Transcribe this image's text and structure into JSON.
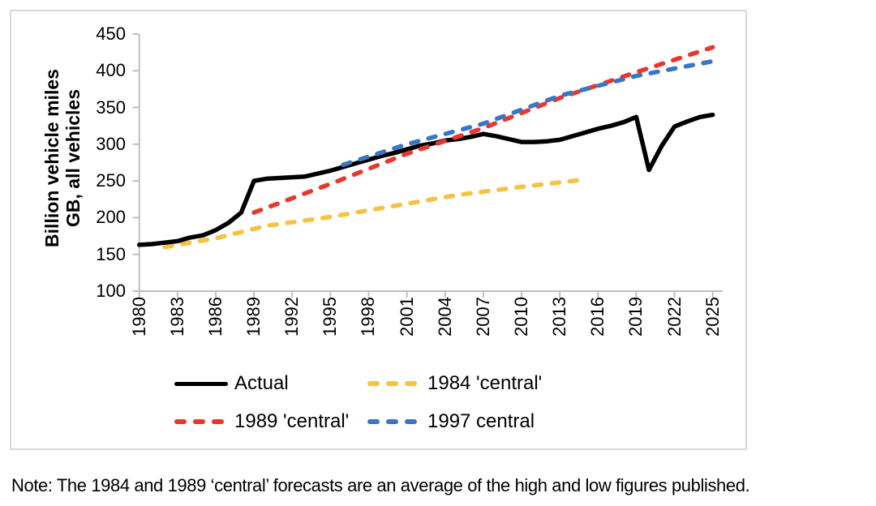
{
  "note": "Note: The 1984 and 1989 ‘central’ forecasts are an average of the high and low figures published.",
  "legend": {
    "items": [
      {
        "label": "Actual",
        "color": "#000000",
        "style": "solid"
      },
      {
        "label": "1984 'central'",
        "color": "#F5C242",
        "style": "dashed"
      },
      {
        "label": "1989 'central'",
        "color": "#E8382D",
        "style": "dashed"
      },
      {
        "label": "1997 central",
        "color": "#3A76C4",
        "style": "dashed"
      }
    ]
  },
  "colors": {
    "axis": "#BFBFBF",
    "panel_border": "#D9D9D9",
    "text": "#000000",
    "background": "#FFFFFF"
  },
  "chart_data": {
    "type": "line",
    "title": "",
    "xlabel": "",
    "ylabel": "Billion vehicle miles GB, all vehicles",
    "ylabel_line1": "Billion vehicle miles",
    "ylabel_line2": "GB, all vehicles",
    "xlim": [
      1980,
      2025
    ],
    "ylim": [
      100,
      450
    ],
    "x_ticks": [
      1980,
      1983,
      1986,
      1989,
      1992,
      1995,
      1998,
      2001,
      2004,
      2007,
      2010,
      2013,
      2016,
      2019,
      2022,
      2025
    ],
    "y_ticks": [
      100,
      150,
      200,
      250,
      300,
      350,
      400,
      450
    ],
    "grid": false,
    "legend_position": "bottom",
    "series": [
      {
        "name": "Actual",
        "color": "#000000",
        "dash": "solid",
        "points": [
          [
            1980,
            163
          ],
          [
            1981,
            164
          ],
          [
            1982,
            166
          ],
          [
            1983,
            168
          ],
          [
            1984,
            173
          ],
          [
            1985,
            176
          ],
          [
            1986,
            183
          ],
          [
            1987,
            193
          ],
          [
            1988,
            207
          ],
          [
            1989,
            250
          ],
          [
            1990,
            253
          ],
          [
            1991,
            254
          ],
          [
            1992,
            255
          ],
          [
            1993,
            256
          ],
          [
            1994,
            260
          ],
          [
            1995,
            264
          ],
          [
            1996,
            269
          ],
          [
            1997,
            274
          ],
          [
            1998,
            279
          ],
          [
            1999,
            284
          ],
          [
            2000,
            288
          ],
          [
            2001,
            293
          ],
          [
            2002,
            298
          ],
          [
            2003,
            301
          ],
          [
            2004,
            305
          ],
          [
            2005,
            307
          ],
          [
            2006,
            310
          ],
          [
            2007,
            314
          ],
          [
            2008,
            311
          ],
          [
            2009,
            307
          ],
          [
            2010,
            303
          ],
          [
            2011,
            303
          ],
          [
            2012,
            304
          ],
          [
            2013,
            306
          ],
          [
            2014,
            311
          ],
          [
            2015,
            316
          ],
          [
            2016,
            321
          ],
          [
            2017,
            325
          ],
          [
            2018,
            330
          ],
          [
            2019,
            337
          ],
          [
            2020,
            265
          ],
          [
            2021,
            298
          ],
          [
            2022,
            324
          ],
          [
            2023,
            331
          ],
          [
            2024,
            337
          ],
          [
            2025,
            340
          ]
        ]
      },
      {
        "name": "1984 'central'",
        "color": "#F5C242",
        "dash": "dashed",
        "points": [
          [
            1982,
            160
          ],
          [
            1986,
            172
          ],
          [
            1990,
            189
          ],
          [
            1995,
            201
          ],
          [
            2000,
            216
          ],
          [
            2005,
            231
          ],
          [
            2010,
            242
          ],
          [
            2015,
            252
          ]
        ]
      },
      {
        "name": "1989 'central'",
        "color": "#E8382D",
        "dash": "dashed",
        "points": [
          [
            1989,
            207
          ],
          [
            1995,
            246
          ],
          [
            2001,
            287
          ],
          [
            2007,
            322
          ],
          [
            2013,
            363
          ],
          [
            2019,
            398
          ],
          [
            2025,
            432
          ]
        ]
      },
      {
        "name": "1997 central",
        "color": "#3A76C4",
        "dash": "dashed",
        "points": [
          [
            1996,
            272
          ],
          [
            2001,
            300
          ],
          [
            2007,
            328
          ],
          [
            2013,
            366
          ],
          [
            2019,
            393
          ],
          [
            2025,
            413
          ]
        ]
      }
    ]
  }
}
